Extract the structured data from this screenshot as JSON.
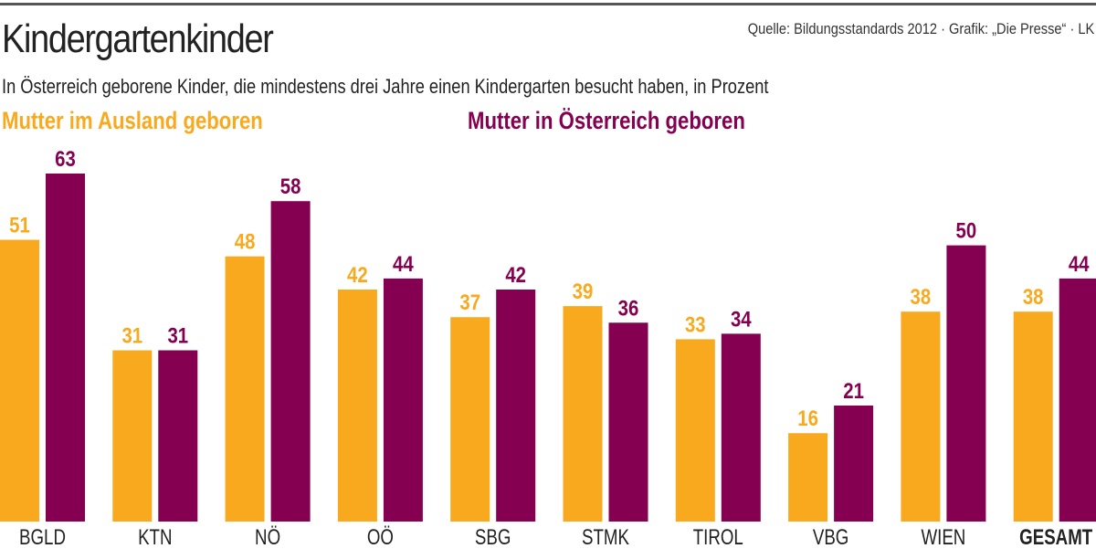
{
  "chart_data": {
    "type": "bar",
    "title": "Kindergartenkinder",
    "subtitle": "In Österreich geborene Kinder, die mindestens drei Jahre einen Kindergarten besucht haben, in Prozent",
    "source": "Quelle: Bildungsstandards 2012 · Grafik: „Die Presse“ · LK",
    "categories": [
      "BGLD",
      "KTN",
      "NÖ",
      "OÖ",
      "SBG",
      "STMK",
      "TIROL",
      "VBG",
      "WIEN",
      "GESAMT"
    ],
    "series": [
      {
        "name": "Mutter im Ausland geboren",
        "color": "#F9A91E",
        "values": [
          51,
          31,
          48,
          42,
          37,
          39,
          33,
          16,
          38,
          38
        ]
      },
      {
        "name": "Mutter in Österreich geboren",
        "color": "#850050",
        "values": [
          63,
          31,
          58,
          44,
          42,
          36,
          34,
          21,
          50,
          44
        ]
      }
    ],
    "ylim": [
      0,
      63
    ],
    "xlabel": "",
    "ylabel": "",
    "grid": false,
    "legend": "top-left",
    "bold_category": "GESAMT"
  }
}
